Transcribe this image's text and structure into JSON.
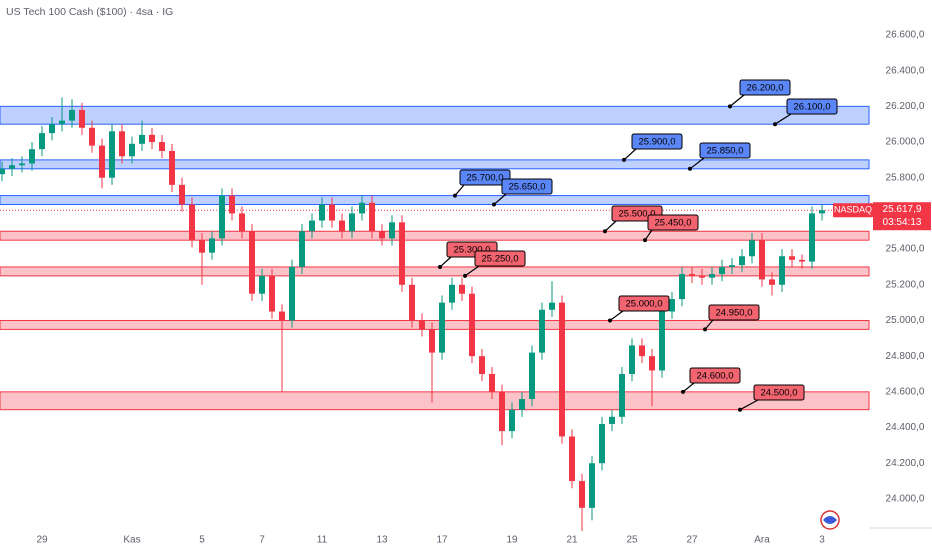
{
  "chart_data": {
    "type": "candlestick",
    "title": "US Tech 100 Cash ($100) · 4sa · IG",
    "categories": [
      null,
      null,
      null,
      null,
      "29",
      null,
      null,
      null,
      null,
      null,
      null,
      null,
      null,
      "Kas",
      null,
      null,
      null,
      null,
      null,
      null,
      "5",
      null,
      null,
      null,
      null,
      null,
      "7",
      null,
      null,
      null,
      null,
      null,
      "11",
      null,
      null,
      null,
      null,
      null,
      "13",
      null,
      null,
      null,
      null,
      null,
      "17",
      null,
      null,
      null,
      null,
      null,
      null,
      "19",
      null,
      null,
      null,
      null,
      null,
      "21",
      null,
      null,
      null,
      null,
      null,
      "25",
      null,
      null,
      null,
      null,
      null,
      "27",
      null,
      null,
      null,
      null,
      null,
      null,
      "Ara",
      null,
      null,
      null,
      null,
      null,
      "3"
    ],
    "open": [
      25820,
      25850,
      25870,
      25880,
      25960,
      26050,
      26100,
      26120,
      26180,
      26080,
      25980,
      25800,
      26060,
      25920,
      25990,
      26040,
      26000,
      25950,
      25760,
      25650,
      25450,
      25380,
      25460,
      25700,
      25600,
      25500,
      25150,
      25250,
      25050,
      25000,
      25300,
      25500,
      25560,
      25650,
      25560,
      25500,
      25600,
      25660,
      25500,
      25460,
      25550,
      25200,
      25000,
      24950,
      24820,
      25100,
      25200,
      25150,
      24800,
      24700,
      24600,
      24380,
      24500,
      24560,
      24820,
      25060,
      25100,
      24350,
      24100,
      23950,
      24200,
      24420,
      24460,
      24700,
      24860,
      24800,
      24720,
      25050,
      25120,
      25260,
      25250,
      25240,
      25260,
      25300,
      25310,
      25360,
      25450,
      25230,
      25200,
      25360,
      25340,
      25330,
      25600
    ],
    "high": [
      25890,
      25910,
      25920,
      26000,
      26090,
      26140,
      26250,
      26240,
      26220,
      26120,
      26020,
      26100,
      26100,
      26030,
      26120,
      26080,
      26040,
      25990,
      25800,
      25690,
      25490,
      25500,
      25740,
      25740,
      25640,
      25540,
      25290,
      25290,
      25090,
      25340,
      25540,
      25600,
      25690,
      25690,
      25600,
      25640,
      25700,
      25700,
      25540,
      25590,
      25590,
      25240,
      25040,
      24990,
      25140,
      25240,
      25240,
      25190,
      24840,
      24740,
      24640,
      24540,
      24600,
      24860,
      25100,
      25220,
      25140,
      24390,
      24140,
      24240,
      24460,
      24500,
      24740,
      24900,
      24900,
      24840,
      25090,
      25160,
      25300,
      25300,
      25290,
      25300,
      25340,
      25350,
      25400,
      25490,
      25490,
      25270,
      25400,
      25400,
      25370,
      25640,
      25650
    ],
    "low": [
      25780,
      25810,
      25830,
      25840,
      25920,
      26010,
      26060,
      26080,
      26040,
      25940,
      25740,
      25760,
      25880,
      25880,
      25950,
      25960,
      25910,
      25720,
      25610,
      25410,
      25200,
      25340,
      25420,
      25560,
      25460,
      25110,
      25110,
      25010,
      24600,
      24960,
      25260,
      25460,
      25520,
      25520,
      25460,
      25460,
      25560,
      25460,
      25420,
      25420,
      25160,
      24960,
      24910,
      24540,
      24780,
      25060,
      25110,
      24760,
      24660,
      24560,
      24300,
      24340,
      24460,
      24520,
      24780,
      25020,
      24310,
      24060,
      23820,
      23880,
      24160,
      24380,
      24420,
      24660,
      24760,
      24520,
      24680,
      25010,
      25080,
      25210,
      25200,
      25200,
      25220,
      25260,
      25270,
      25320,
      25190,
      25140,
      25160,
      25300,
      25290,
      25290,
      25560
    ],
    "close": [
      25850,
      25870,
      25880,
      25960,
      26050,
      26100,
      26120,
      26180,
      26080,
      25980,
      25800,
      26060,
      25920,
      25990,
      26040,
      26000,
      25950,
      25760,
      25650,
      25450,
      25380,
      25460,
      25700,
      25600,
      25500,
      25150,
      25250,
      25050,
      25000,
      25300,
      25500,
      25560,
      25650,
      25560,
      25500,
      25600,
      25660,
      25500,
      25460,
      25550,
      25200,
      25000,
      24950,
      24820,
      25100,
      25200,
      25150,
      24800,
      24700,
      24600,
      24380,
      24500,
      24560,
      24820,
      25060,
      25100,
      24350,
      24100,
      23950,
      24200,
      24420,
      24460,
      24700,
      24860,
      24800,
      24720,
      25050,
      25120,
      25260,
      25250,
      25240,
      25260,
      25300,
      25310,
      25360,
      25450,
      25230,
      25200,
      25360,
      25340,
      25330,
      25600,
      25617.9
    ],
    "up_color": "#089981",
    "down_color": "#f23645",
    "zones": [
      {
        "values": [
          26200,
          26100
        ],
        "value_labels": [
          "26.200,0",
          "26.100,0"
        ],
        "color": "#2962ff"
      },
      {
        "values": [
          25900,
          25850
        ],
        "value_labels": [
          "25.900,0",
          "25.850,0"
        ],
        "color": "#2962ff"
      },
      {
        "values": [
          25700,
          25650
        ],
        "value_labels": [
          "25.700,0",
          "25.650,0"
        ],
        "color": "#2962ff"
      },
      {
        "values": [
          25500,
          25450
        ],
        "value_labels": [
          "25.500,0",
          "25.450,0"
        ],
        "color": "#f23645"
      },
      {
        "values": [
          25300,
          25250
        ],
        "value_labels": [
          "25.300,0",
          "25.250,0"
        ],
        "color": "#f23645"
      },
      {
        "values": [
          25000,
          24950
        ],
        "value_labels": [
          "25.000,0",
          "24.950,0"
        ],
        "color": "#f23645"
      },
      {
        "values": [
          24600,
          24500
        ],
        "value_labels": [
          "24.600,0",
          "24.500,0"
        ],
        "color": "#f23645"
      }
    ],
    "last_price": {
      "name": "NASDAQ",
      "value": 25617.9,
      "label": "25.617,9",
      "countdown": "03:54:13",
      "color": "#f23645"
    },
    "ylim": [
      23837,
      26796
    ],
    "yticks": [
      {
        "value": 24000,
        "label": "24.000,0"
      },
      {
        "value": 24200,
        "label": "24.200,0"
      },
      {
        "value": 24400,
        "label": "24.400,0"
      },
      {
        "value": 24600,
        "label": "24.600,0"
      },
      {
        "value": 24800,
        "label": "24.800,0"
      },
      {
        "value": 25000,
        "label": "25.000,0"
      },
      {
        "value": 25200,
        "label": "25.200,0"
      },
      {
        "value": 25400,
        "label": "25.400,0"
      },
      {
        "value": 25600,
        "label": "25.600,0"
      },
      {
        "value": 25800,
        "label": "25.800,0"
      },
      {
        "value": 26000,
        "label": "26.000,0"
      },
      {
        "value": 26200,
        "label": "26.200,0"
      },
      {
        "value": 26400,
        "label": "26.400,0"
      },
      {
        "value": 26600,
        "label": "26.600,0"
      }
    ],
    "grid": false
  }
}
